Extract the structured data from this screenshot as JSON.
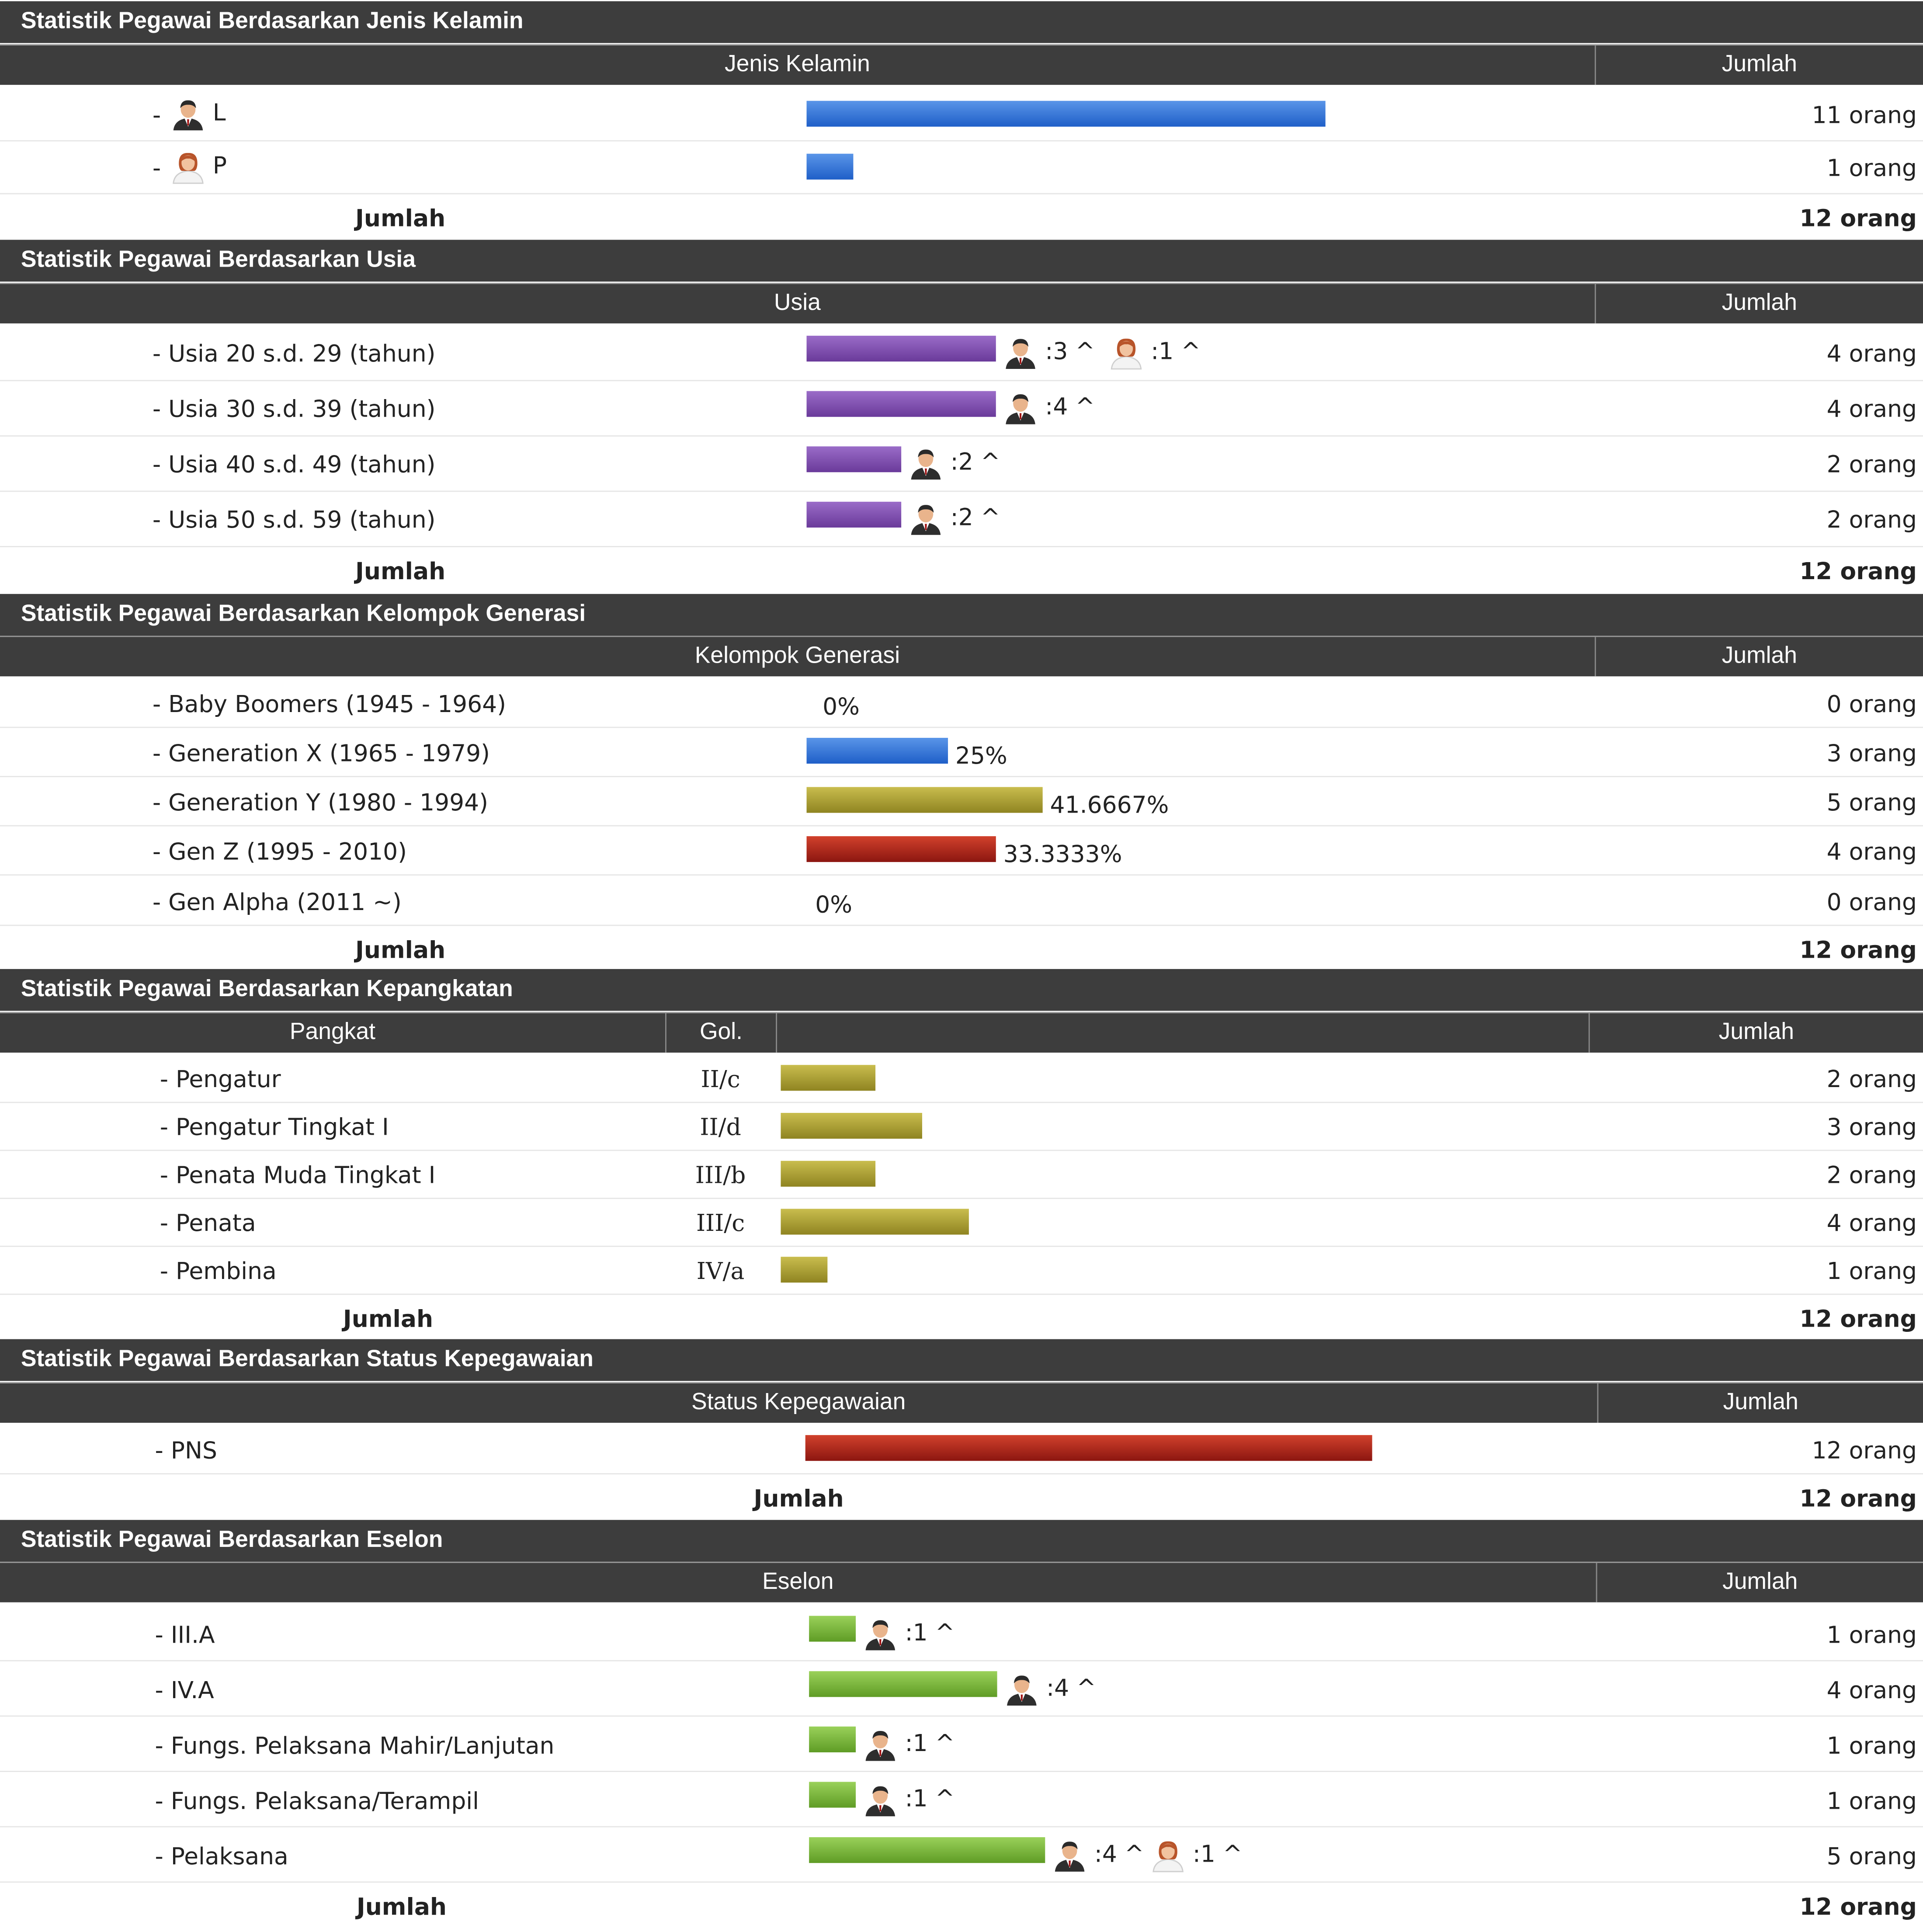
{
  "unit": "orang",
  "sum_label": "Jumlah",
  "gender": {
    "title": "Statistik Pegawai Berdasarkan Jenis Kelamin",
    "col_label": "Jenis Kelamin",
    "col_count": "Jumlah",
    "rows": [
      {
        "label": "L",
        "icon": "male-user-icon",
        "count": "11 orang",
        "value": 11
      },
      {
        "label": "P",
        "icon": "female-user-icon",
        "count": "1 orang",
        "value": 1
      }
    ],
    "total": "12 orang"
  },
  "age": {
    "title": "Statistik Pegawai Berdasarkan Usia",
    "col_label": "Usia",
    "col_count": "Jumlah",
    "rows": [
      {
        "label": "- Usia 20 s.d. 29 (tahun)",
        "value": 4,
        "count": "4 orang",
        "male": ":3 ^",
        "female": ":1 ^"
      },
      {
        "label": "- Usia 30 s.d. 39 (tahun)",
        "value": 4,
        "count": "4 orang",
        "male": ":4 ^"
      },
      {
        "label": "- Usia 40 s.d. 49 (tahun)",
        "value": 2,
        "count": "2 orang",
        "male": ":2 ^"
      },
      {
        "label": "- Usia 50 s.d. 59 (tahun)",
        "value": 2,
        "count": "2 orang",
        "male": ":2 ^"
      }
    ],
    "total": "12 orang"
  },
  "generation": {
    "title": "Statistik Pegawai Berdasarkan Kelompok Generasi",
    "col_label": "Kelompok Generasi",
    "col_count": "Jumlah",
    "rows": [
      {
        "label": "- Baby Boomers (1945 - 1964)",
        "value": 0,
        "pct": "0%",
        "count": "0 orang"
      },
      {
        "label": "- Generation X (1965 - 1979)",
        "value": 3,
        "pct": "25%",
        "count": "3 orang",
        "color": "#2a68d0"
      },
      {
        "label": "- Generation Y (1980 - 1994)",
        "value": 5,
        "pct": "41.6667%",
        "count": "5 orang",
        "color": "#b0a43a"
      },
      {
        "label": "- Gen Z (1995 - 2010)",
        "value": 4,
        "pct": "33.3333%",
        "count": "4 orang",
        "color": "#b02518"
      },
      {
        "label": "- Gen Alpha (2011 ~)",
        "value": 0,
        "pct": "0%",
        "count": "0 orang"
      }
    ],
    "total": "12 orang"
  },
  "rank": {
    "title": "Statistik Pegawai Berdasarkan Kepangkatan",
    "col_label": "Pangkat",
    "col_gol": "Gol.",
    "col_count": "Jumlah",
    "rows": [
      {
        "label": "- Pengatur",
        "gol": "II/c",
        "value": 2,
        "count": "2 orang"
      },
      {
        "label": "- Pengatur Tingkat I",
        "gol": "II/d",
        "value": 3,
        "count": "3 orang"
      },
      {
        "label": "- Penata Muda Tingkat I",
        "gol": "III/b",
        "value": 2,
        "count": "2 orang"
      },
      {
        "label": "- Penata",
        "gol": "III/c",
        "value": 4,
        "count": "4 orang"
      },
      {
        "label": "- Pembina",
        "gol": "IV/a",
        "value": 1,
        "count": "1 orang"
      }
    ],
    "total": "12 orang"
  },
  "status": {
    "title": "Statistik Pegawai Berdasarkan Status Kepegawaian",
    "col_label": "Status Kepegawaian",
    "col_count": "Jumlah",
    "rows": [
      {
        "label": "- PNS",
        "value": 12,
        "count": "12 orang"
      }
    ],
    "total": "12 orang"
  },
  "eselon": {
    "title": "Statistik Pegawai Berdasarkan Eselon",
    "col_label": "Eselon",
    "col_count": "Jumlah",
    "rows": [
      {
        "label": "- III.A",
        "value": 1,
        "count": "1 orang",
        "male": ":1 ^"
      },
      {
        "label": "- IV.A",
        "value": 4,
        "count": "4 orang",
        "male": ":4 ^"
      },
      {
        "label": "- Fungs. Pelaksana Mahir/Lanjutan",
        "value": 1,
        "count": "1 orang",
        "male": ":1 ^"
      },
      {
        "label": "- Fungs. Pelaksana/Terampil",
        "value": 1,
        "count": "1 orang",
        "male": ":1 ^"
      },
      {
        "label": "- Pelaksana",
        "value": 5,
        "count": "5 orang",
        "male": ":4 ^",
        "female": ":1 ^"
      }
    ],
    "total": "12 orang"
  }
}
